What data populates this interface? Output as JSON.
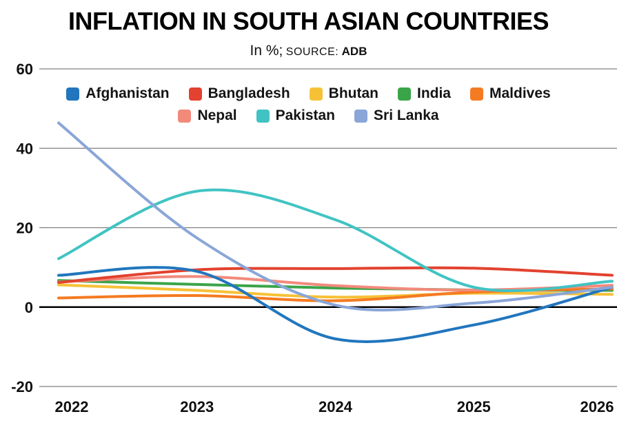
{
  "header": {
    "title": "INFLATION IN SOUTH ASIAN COUNTRIES",
    "subtitle": "In %; SOURCE: ADB"
  },
  "chart_data": {
    "type": "line",
    "title": "INFLATION IN SOUTH ASIAN COUNTRIES",
    "subtitle": "In %; SOURCE: ADB",
    "subtitle_parts": {
      "unit": "In %;",
      "source_label": "SOURCE:",
      "source_value": "ADB"
    },
    "x": [
      2022,
      2023,
      2024,
      2025,
      2026
    ],
    "x_tick_labels": [
      "2022",
      "2023",
      "2024",
      "2025",
      "2026"
    ],
    "ylabel": "",
    "xlabel": "",
    "ylim": [
      -20,
      60
    ],
    "y_ticks": [
      60,
      40,
      20,
      0,
      -20
    ],
    "grid": "horizontal",
    "line_style": "smooth",
    "legend_position": "top-center-two-rows",
    "background_color": "#ffffff",
    "zero_line_color": "#000000",
    "grid_color": "#7f7f7f",
    "series": [
      {
        "name": "Afghanistan",
        "color": "#2176bd",
        "values": [
          8.0,
          9.0,
          -8.0,
          -4.5,
          5.0
        ]
      },
      {
        "name": "Bangladesh",
        "color": "#e2422f",
        "values": [
          6.2,
          9.4,
          9.7,
          9.8,
          8.0
        ]
      },
      {
        "name": "Bhutan",
        "color": "#f7c137",
        "values": [
          5.6,
          4.2,
          2.5,
          3.5,
          3.2
        ]
      },
      {
        "name": "India",
        "color": "#3aa449",
        "values": [
          6.7,
          5.7,
          4.8,
          4.3,
          4.2
        ]
      },
      {
        "name": "Maldives",
        "color": "#f47b21",
        "values": [
          2.3,
          2.9,
          1.6,
          3.8,
          4.6
        ]
      },
      {
        "name": "Nepal",
        "color": "#f28a7c",
        "values": [
          6.3,
          7.7,
          5.4,
          4.3,
          5.5
        ]
      },
      {
        "name": "Pakistan",
        "color": "#41c3c3",
        "values": [
          12.2,
          29.2,
          22.0,
          5.0,
          6.5
        ]
      },
      {
        "name": "Sri Lanka",
        "color": "#8aa6d8",
        "values": [
          46.4,
          17.4,
          0.5,
          1.0,
          5.0
        ]
      }
    ],
    "legend_rows": [
      5,
      3
    ]
  }
}
